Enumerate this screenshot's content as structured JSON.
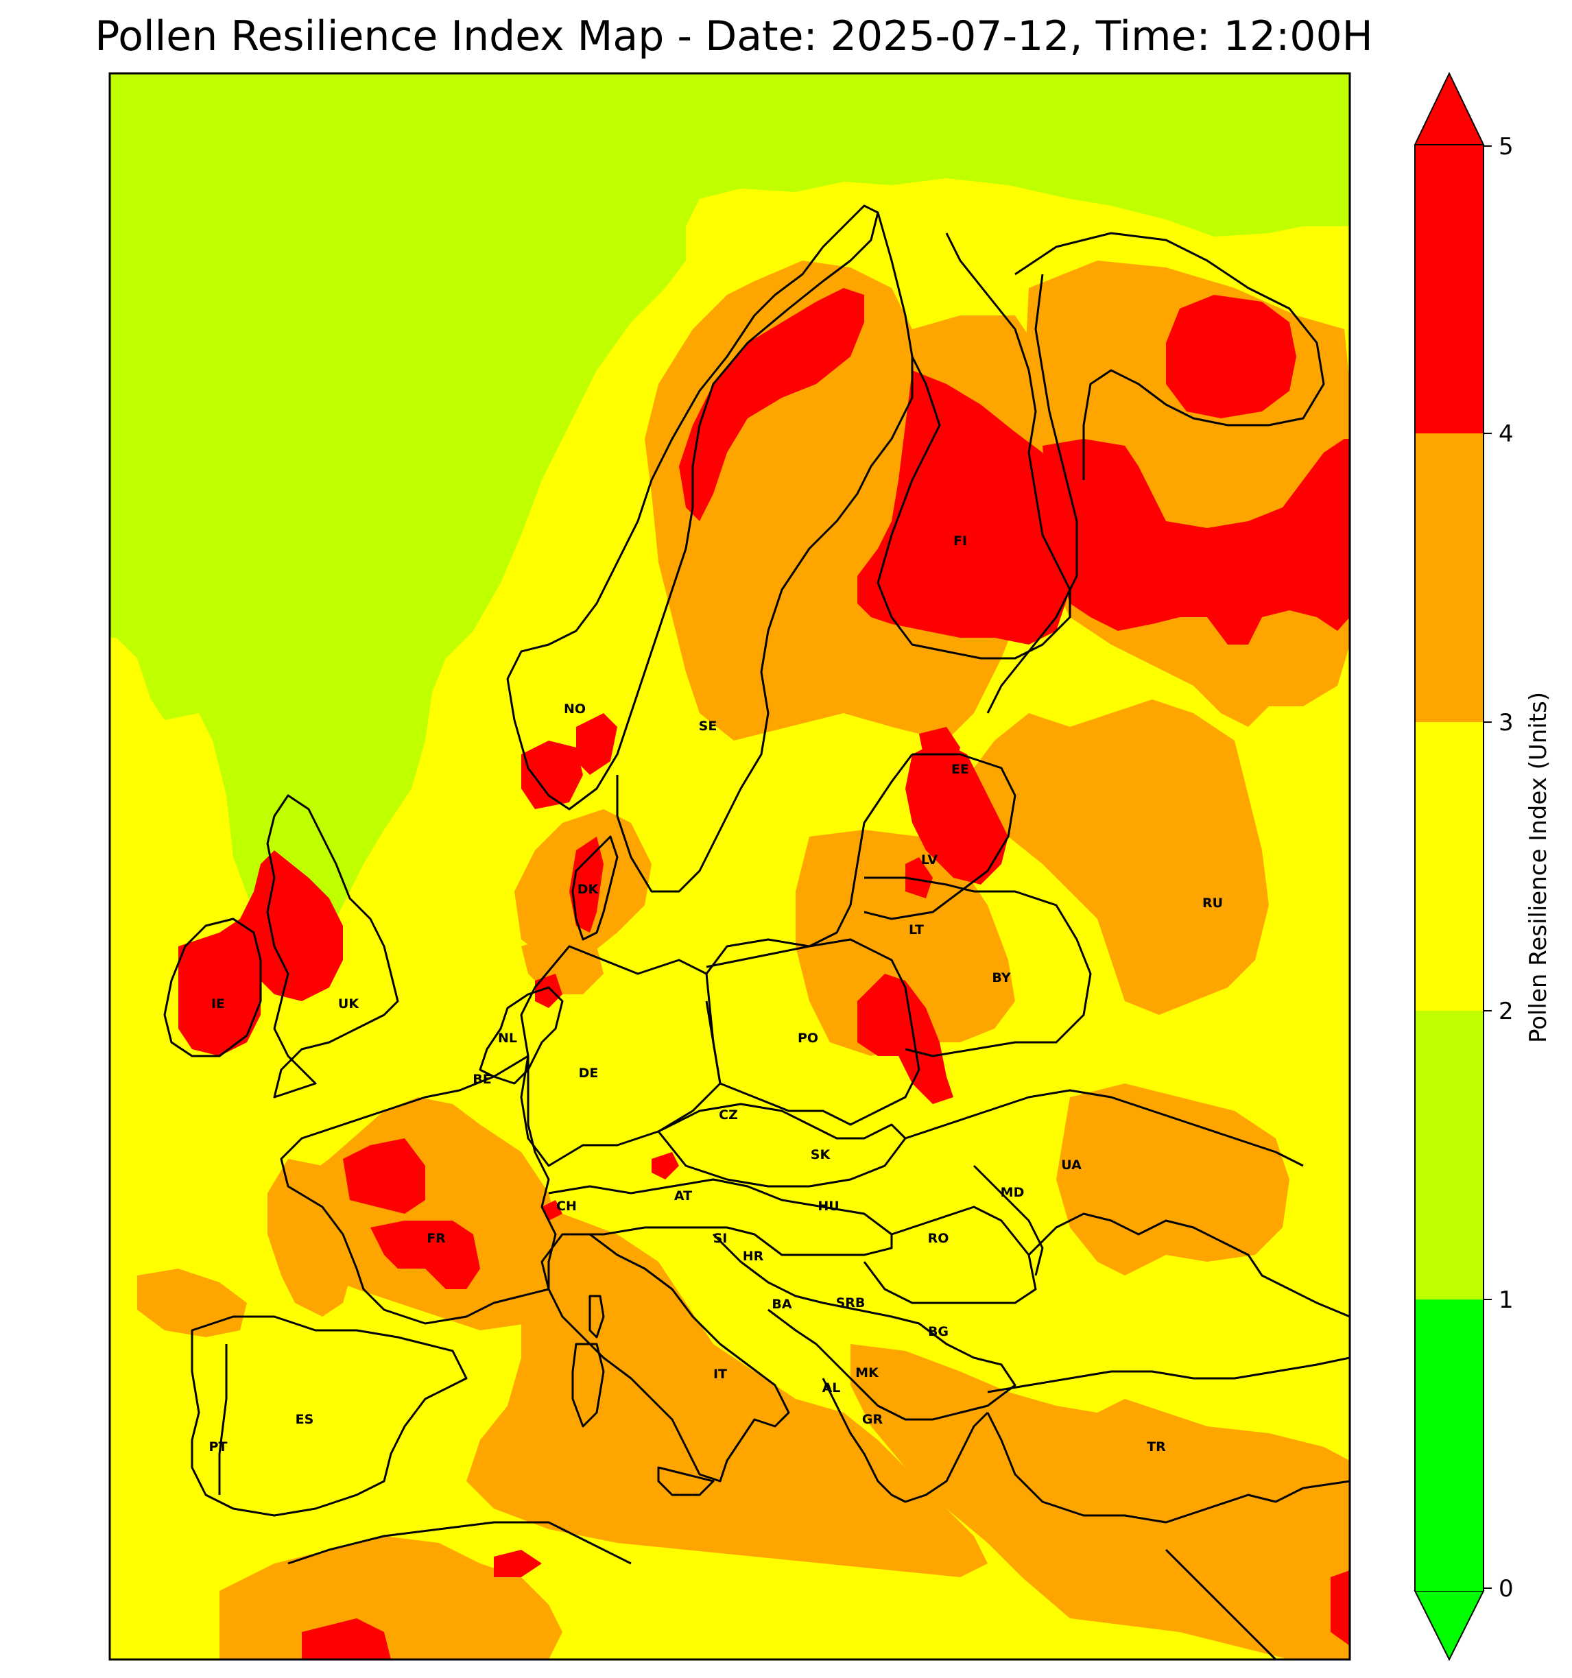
{
  "title": "Pollen Resilience Index Map - Date: 2025-07-12, Time: 12:00H",
  "colorbar": {
    "label": "Pollen Resilience Index (Units)",
    "ticks": [
      "0",
      "1",
      "2",
      "3",
      "4",
      "5"
    ],
    "levels": [
      {
        "from": 0,
        "to": 1,
        "color": "#00ff00"
      },
      {
        "from": 1,
        "to": 2,
        "color": "#bfff00"
      },
      {
        "from": 2,
        "to": 3,
        "color": "#ffff00"
      },
      {
        "from": 3,
        "to": 4,
        "color": "#ffa500"
      },
      {
        "from": 4,
        "to": 5,
        "color": "#ff0000"
      }
    ],
    "extend": "both"
  },
  "countries": [
    {
      "code": "NO"
    },
    {
      "code": "SE"
    },
    {
      "code": "FI"
    },
    {
      "code": "EE"
    },
    {
      "code": "LV"
    },
    {
      "code": "LT"
    },
    {
      "code": "RU"
    },
    {
      "code": "BY"
    },
    {
      "code": "DK"
    },
    {
      "code": "IE"
    },
    {
      "code": "UK"
    },
    {
      "code": "NL"
    },
    {
      "code": "BE"
    },
    {
      "code": "DE"
    },
    {
      "code": "PO"
    },
    {
      "code": "CZ"
    },
    {
      "code": "SK"
    },
    {
      "code": "UA"
    },
    {
      "code": "MD"
    },
    {
      "code": "AT"
    },
    {
      "code": "CH"
    },
    {
      "code": "HU"
    },
    {
      "code": "FR"
    },
    {
      "code": "SI"
    },
    {
      "code": "HR"
    },
    {
      "code": "RO"
    },
    {
      "code": "BA"
    },
    {
      "code": "SRB"
    },
    {
      "code": "BG"
    },
    {
      "code": "IT"
    },
    {
      "code": "MK"
    },
    {
      "code": "AL"
    },
    {
      "code": "GR"
    },
    {
      "code": "ES"
    },
    {
      "code": "PT"
    },
    {
      "code": "TR"
    }
  ]
}
